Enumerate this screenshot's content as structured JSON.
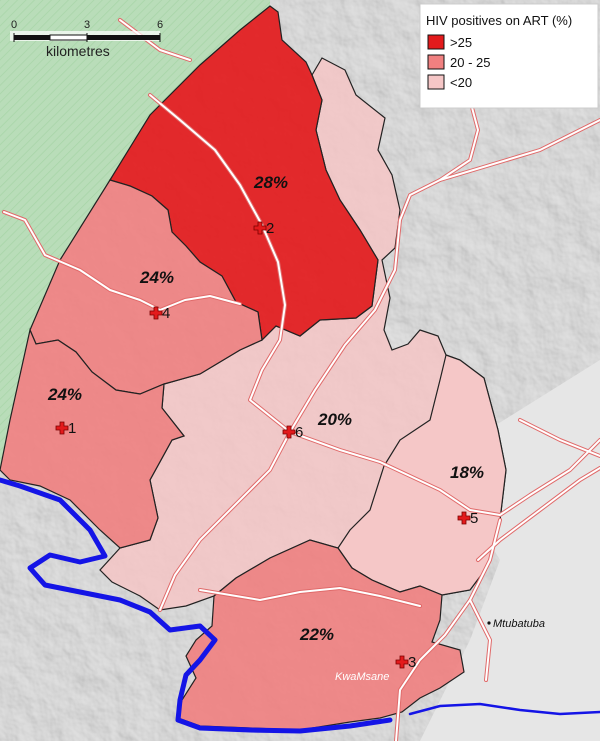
{
  "legend": {
    "title": "HIV positives on ART (%)",
    "items": [
      {
        "label": ">25",
        "color": "#e31a1c"
      },
      {
        "label": "20 - 25",
        "color": "#f08080"
      },
      {
        "label": "<20",
        "color": "#f5c6c6"
      }
    ]
  },
  "scale_bar": {
    "ticks": [
      "0",
      "3",
      "6"
    ],
    "unit": "kilometres"
  },
  "regions": [
    {
      "id": "clinic-2-area",
      "pct": "28%",
      "class": ">25"
    },
    {
      "id": "clinic-4-area",
      "pct": "24%",
      "class": "20 - 25"
    },
    {
      "id": "clinic-1-area",
      "pct": "24%",
      "class": "20 - 25"
    },
    {
      "id": "clinic-6-area",
      "pct": "20%",
      "class": "<20"
    },
    {
      "id": "clinic-5-area",
      "pct": "18%",
      "class": "<20"
    },
    {
      "id": "clinic-3-area",
      "pct": "22%",
      "class": "20 - 25"
    }
  ],
  "clinics": [
    "1",
    "2",
    "3",
    "4",
    "5",
    "6"
  ],
  "towns": [
    "Mtubatuba",
    "KwaMsane"
  ],
  "colors": {
    "terrain": "#d9d9d9",
    "vegetation": "#b7dcb7",
    "river": "#1414e6",
    "road": "#ffffff",
    "road_outline": "#e06a6a",
    "boundary": "#222222",
    "clinic_cross": "#e31a1c"
  }
}
